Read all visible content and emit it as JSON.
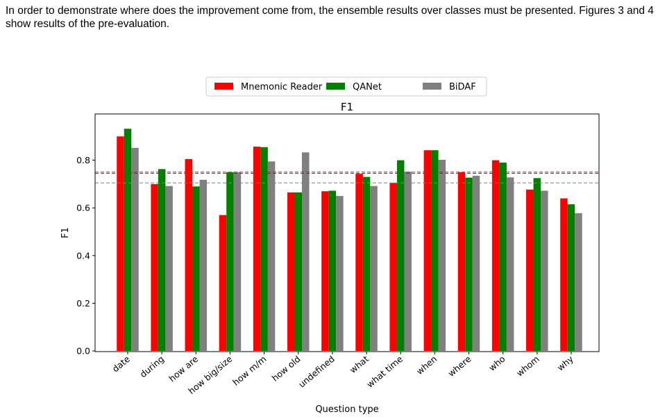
{
  "paragraph": "In order to demonstrate where does the improvement come from, the ensemble results over classes must be presented. Figures 3 and 4 show results of the pre-evaluation.",
  "chart_data": {
    "type": "bar",
    "title": "F1",
    "xlabel": "Question type",
    "ylabel": "F1",
    "ylim": [
      0,
      0.96
    ],
    "yticks": [
      "0.0",
      "0.2",
      "0.4",
      "0.6",
      "0.8"
    ],
    "grid": false,
    "legend_position": "top-center",
    "categories": [
      "date",
      "during",
      "how are",
      "how big/size",
      "how m/m",
      "how old",
      "undefined",
      "what",
      "what time",
      "when",
      "where",
      "who",
      "whom",
      "why"
    ],
    "series": [
      {
        "name": "Mnemonic Reader",
        "color": "#ff0000",
        "values": [
          0.9,
          0.7,
          0.805,
          0.57,
          0.857,
          0.665,
          0.67,
          0.743,
          0.705,
          0.842,
          0.75,
          0.8,
          0.677,
          0.64
        ]
      },
      {
        "name": "QANet",
        "color": "#008000",
        "values": [
          0.932,
          0.763,
          0.69,
          0.75,
          0.855,
          0.665,
          0.672,
          0.73,
          0.8,
          0.842,
          0.727,
          0.79,
          0.725,
          0.615
        ]
      },
      {
        "name": "BiDAF",
        "color": "#808080",
        "values": [
          0.852,
          0.692,
          0.718,
          0.75,
          0.795,
          0.833,
          0.65,
          0.692,
          0.752,
          0.802,
          0.735,
          0.728,
          0.672,
          0.578
        ]
      }
    ],
    "reference_lines": [
      {
        "color": "#ff0000",
        "value": 0.75
      },
      {
        "color": "#008000",
        "value": 0.745
      },
      {
        "color": "#808080",
        "value": 0.705
      }
    ]
  }
}
